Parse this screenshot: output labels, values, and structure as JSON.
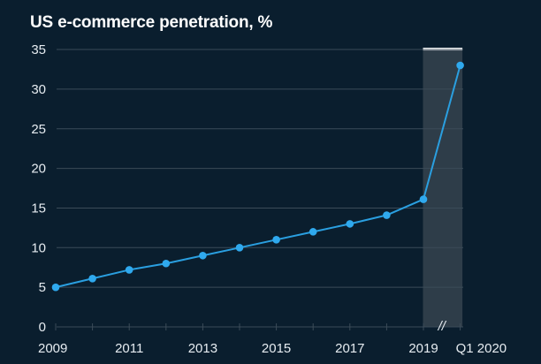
{
  "chart_data": {
    "type": "line",
    "title": "US e-commerce penetration, %",
    "xlabel": "",
    "ylabel": "",
    "unit": "%",
    "x": [
      "2009",
      "2010",
      "2011",
      "2012",
      "2013",
      "2014",
      "2015",
      "2016",
      "2017",
      "2018",
      "2019",
      "Q1 2020"
    ],
    "values": [
      5.0,
      6.1,
      7.2,
      8.0,
      9.0,
      10.0,
      11.0,
      12.0,
      13.0,
      14.1,
      16.1,
      33.0
    ],
    "x_tick_labels": [
      "2009",
      "2011",
      "2013",
      "2015",
      "2017",
      "2019",
      "Q1 2020"
    ],
    "y_ticks": [
      0,
      5,
      10,
      15,
      20,
      25,
      30,
      35
    ],
    "ylim": [
      0,
      35
    ],
    "grid": true,
    "legend": "none",
    "highlight_period": [
      "2019",
      "Q1 2020"
    ],
    "axis_break_symbol": "//",
    "colors": {
      "background": "#0a1e2e",
      "line": "#2a9fe0",
      "marker": "#2fa9ee",
      "grid": "#3b4b58",
      "highlight": "#2e3d49",
      "highlight_top": "#ffffff",
      "text": "#e6ecf1",
      "title": "#ffffff"
    }
  }
}
